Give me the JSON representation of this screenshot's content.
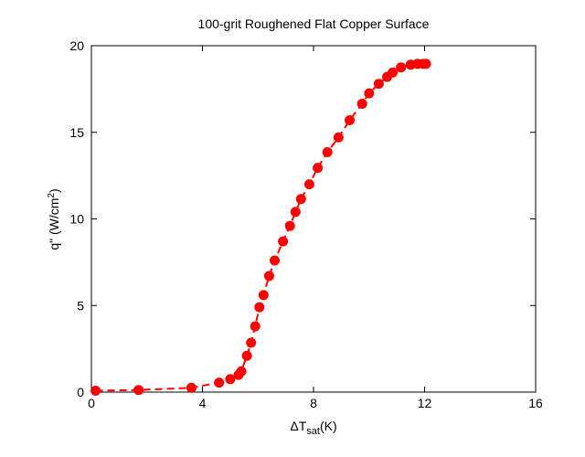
{
  "chart_data": {
    "type": "line",
    "title": "100-grit Roughened Flat Copper Surface",
    "xlabel": {
      "prefix": "ΔT",
      "subscript": "sat",
      "suffix": "(K)"
    },
    "ylabel": {
      "prefix": "q\" (W/cm",
      "superscript": "2",
      "suffix": ")"
    },
    "xlim": [
      0,
      16
    ],
    "ylim": [
      0,
      20
    ],
    "xticks": [
      0,
      4,
      8,
      12,
      16
    ],
    "yticks": [
      0,
      5,
      10,
      15,
      20
    ],
    "grid": false,
    "colors": {
      "series": "#ff0000",
      "axes": "#000000"
    },
    "series": [
      {
        "line_style": "dashed",
        "marker": "circle",
        "x": [
          0.15,
          1.7,
          3.6,
          4.6,
          5.0,
          5.3,
          5.4,
          5.6,
          5.75,
          5.9,
          6.05,
          6.2,
          6.4,
          6.6,
          6.9,
          7.15,
          7.35,
          7.55,
          7.85,
          8.15,
          8.5,
          8.9,
          9.3,
          9.75,
          10.0,
          10.35,
          10.65,
          10.85,
          11.15,
          11.5,
          11.75,
          11.95,
          12.05
        ],
        "y": [
          0.08,
          0.12,
          0.25,
          0.55,
          0.75,
          1.0,
          1.2,
          2.1,
          2.85,
          3.8,
          4.9,
          5.6,
          6.7,
          7.6,
          8.7,
          9.6,
          10.4,
          11.15,
          12.0,
          12.95,
          13.85,
          14.7,
          15.7,
          16.65,
          17.25,
          17.8,
          18.2,
          18.45,
          18.75,
          18.9,
          18.95,
          18.95,
          18.95
        ]
      }
    ]
  }
}
